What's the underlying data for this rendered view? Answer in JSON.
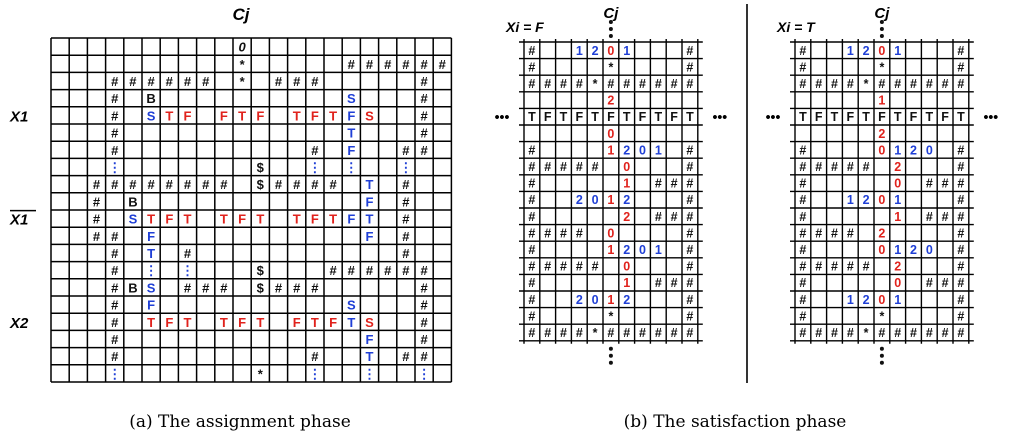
{
  "panel_a": {
    "column_label": "Cj",
    "caption": "(a) The assignment phase",
    "row_labels": [
      "X1",
      "X1",
      "X2"
    ],
    "row_label_overline": [
      false,
      true,
      false
    ],
    "rows": [
      "..........0...........",
      "..........*.....######",
      "...######.*.###.....#.",
      "...#.B..........S...#.",
      "...#.STF.FTF.TFTFS..#.",
      "...#............T...#.",
      "...#..........#.F..##.",
      "...:.......$..:.:..:..",
      "..########.$####.T.#..",
      "..#.B............F.#..",
      "..#.STFT.TFT.TFTFT.#..",
      "..##.F...........F.#..",
      "...#.T.#...........#..",
      "...#.:.:...$...######.",
      "...#BS.###.$###.....#.",
      "...#.F..........S...#.",
      "...#.TFT.TFT.FTFTS..#.",
      "...#.............F..#.",
      "...#..........#..T.##.",
      "...:.......*..:..:..:."
    ]
  },
  "panel_b": {
    "caption": "(b) The satisfaction phase",
    "left": {
      "title": "Xi = F",
      "column_label": "Cj",
      "ellipsis": "•••",
      "rows": [
        "#..1201...#",
        "#....*....#",
        "####*######",
        ".....2.....",
        "TFTFTFTFTFT",
        ".....0.....",
        "#....1201.#",
        "#####.0...#",
        "#.....1.###",
        "#..2012...#",
        "#.....2.###",
        "####.0....#",
        "#....1201.#",
        "#####.0...#",
        "#.....1.###",
        "#..2012...#",
        "#....*....#",
        "####*######"
      ]
    },
    "right": {
      "title": "Xi = T",
      "column_label": "Cj",
      "ellipsis": "•••",
      "rows": [
        "#..1201...#",
        "#....*....#",
        "####*######",
        ".....1.....",
        "TFTFTFTFTFT",
        ".....2.....",
        "#....0120.#",
        "#####.2...#",
        "#.....0.###",
        "#..1201...#",
        "#.....1.###",
        "####.2....#",
        "#....0120.#",
        "#####.2...#",
        "#.....0.###",
        "#..1201...#",
        "#....*....#",
        "####*######"
      ]
    }
  },
  "colors": {
    "line": "#000000",
    "blue_symbol": "#1f3fd6",
    "red_symbol": "#e0221c",
    "black_symbol": "#111111",
    "background": "#ffffff"
  }
}
